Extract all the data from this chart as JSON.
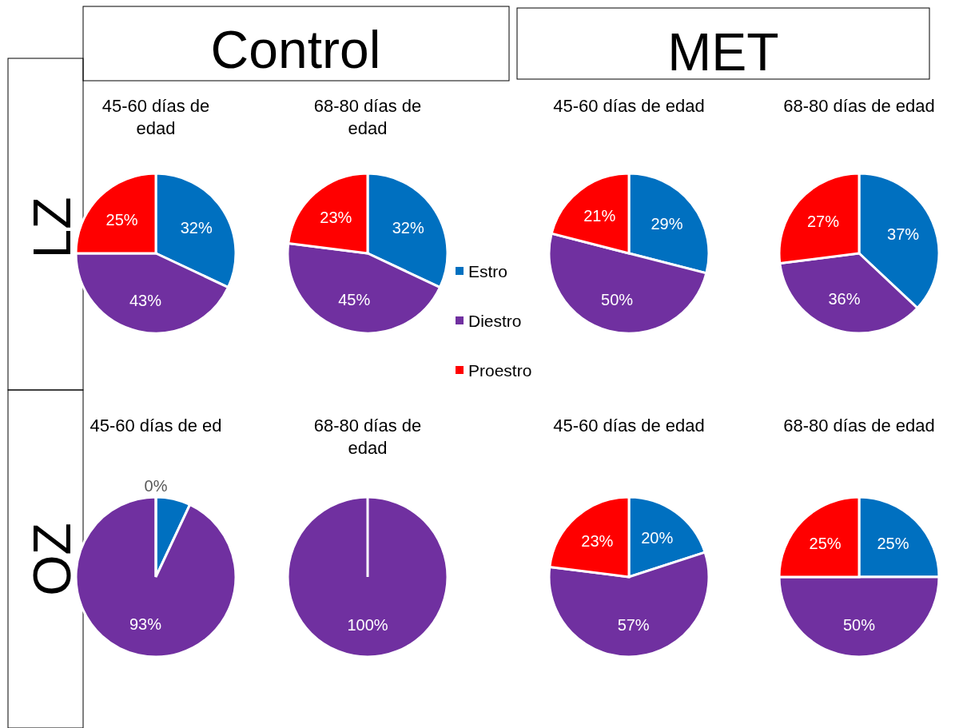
{
  "chart_data": [
    {
      "type": "pie",
      "title": "45-60 días de edad",
      "categories": [
        null,
        null,
        null
      ],
      "values": [
        32,
        43,
        25
      ],
      "colors": [
        "#0070c0",
        "#7030a0",
        "#ff0000"
      ],
      "value_labels": [
        "32%",
        "43%",
        "25%"
      ],
      "legend": false,
      "annotations": [
        "Control",
        "LZ"
      ]
    },
    {
      "type": "pie",
      "title": "68-80 días de edad",
      "categories": [
        "Estro",
        "Diestro",
        "Proestro"
      ],
      "values": [
        32,
        45,
        23
      ],
      "colors": [
        "#0070c0",
        "#7030a0",
        "#ff0000"
      ],
      "value_labels": [
        "32%",
        "45%",
        "23%"
      ],
      "legend": "right"
    },
    {
      "type": "pie",
      "title": "45-60 días de edad",
      "categories": [
        null,
        null,
        null
      ],
      "values": [
        29,
        50,
        21
      ],
      "colors": [
        "#0070c0",
        "#7030a0",
        "#ff0000"
      ],
      "value_labels": [
        "29%",
        "50%",
        "21%"
      ],
      "legend": false,
      "annotations": [
        "MET"
      ]
    },
    {
      "type": "pie",
      "title": "68-80 días de edad",
      "categories": [
        null,
        null,
        null
      ],
      "values": [
        37,
        36,
        27
      ],
      "colors": [
        "#0070c0",
        "#7030a0",
        "#ff0000"
      ],
      "value_labels": [
        "37%",
        "36%",
        "27%"
      ],
      "legend": false
    },
    {
      "type": "pie",
      "title": "45-60 días de ed",
      "categories": [
        null,
        null,
        null
      ],
      "values": [
        7,
        93,
        0
      ],
      "colors": [
        "#0070c0",
        "#7030a0",
        "#ff0000"
      ],
      "value_labels": [
        null,
        "93%",
        "0%"
      ],
      "legend": false,
      "annotations": [
        "OZ"
      ]
    },
    {
      "type": "pie",
      "title": "68-80 días de edad",
      "categories": [
        null,
        null,
        null
      ],
      "values": [
        0,
        100,
        0
      ],
      "colors": [
        "#0070c0",
        "#7030a0",
        "#ff0000"
      ],
      "value_labels": [
        null,
        "100%",
        null
      ],
      "legend": false
    },
    {
      "type": "pie",
      "title": "45-60 días de edad",
      "categories": [
        null,
        null,
        null
      ],
      "values": [
        20,
        57,
        23
      ],
      "colors": [
        "#0070c0",
        "#7030a0",
        "#ff0000"
      ],
      "value_labels": [
        "20%",
        "57%",
        "23%"
      ],
      "legend": false
    },
    {
      "type": "pie",
      "title": "68-80 días de edad",
      "categories": [
        null,
        null,
        null
      ],
      "values": [
        25,
        50,
        25
      ],
      "colors": [
        "#0070c0",
        "#7030a0",
        "#ff0000"
      ],
      "value_labels": [
        "25%",
        "50%",
        "25%"
      ],
      "legend": false
    }
  ]
}
